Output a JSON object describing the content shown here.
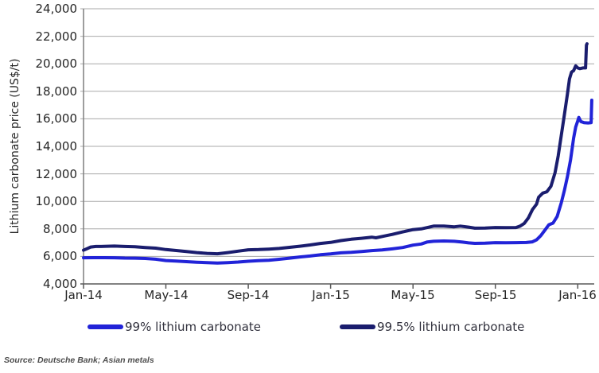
{
  "y_axis": {
    "title": "Lithium carbonate price (US$/t)",
    "tick_labels": [
      "24,000",
      "22,000",
      "20,000",
      "18,000",
      "16,000",
      "14,000",
      "12,000",
      "10,000",
      "8,000",
      "6,000",
      "4,000"
    ]
  },
  "x_axis": {
    "tick_labels": [
      "Jan-14",
      "May-14",
      "Sep-14",
      "Jan-15",
      "May-15",
      "Sep-15",
      "Jan-16"
    ]
  },
  "legend": [
    {
      "label": "99% lithium carbonate",
      "color": "#2123d8"
    },
    {
      "label": "99.5% lithium carbonate",
      "color": "#1a1d6e"
    }
  ],
  "source": "Source: Deutsche Bank; Asian metals",
  "colors": {
    "gridline": "#a8a8a8",
    "y_axis_line": "#7f7f7f",
    "x_axis_line": "#595959",
    "tick_text": "#262626"
  },
  "chart_data": {
    "type": "line",
    "title": "",
    "xlabel": "",
    "ylabel": "Lithium carbonate price (US$/t)",
    "x_unit": "months since Jan-2014 (0 = Jan-14, 24 = Jan-16)",
    "x_tick_positions": [
      0,
      4,
      8,
      12,
      16,
      20,
      24
    ],
    "x_tick_labels": [
      "Jan-14",
      "May-14",
      "Sep-14",
      "Jan-15",
      "May-15",
      "Sep-15",
      "Jan-16"
    ],
    "xlim": [
      0,
      24.8
    ],
    "ylim": [
      4000,
      24000
    ],
    "y_tick_step": 2000,
    "grid": true,
    "legend_position": "bottom",
    "series": [
      {
        "name": "99% lithium carbonate",
        "color": "#2123d8",
        "points": [
          [
            0,
            5900
          ],
          [
            0.5,
            5910
          ],
          [
            1,
            5910
          ],
          [
            1.5,
            5900
          ],
          [
            2,
            5880
          ],
          [
            2.5,
            5870
          ],
          [
            3,
            5850
          ],
          [
            3.5,
            5800
          ],
          [
            4,
            5700
          ],
          [
            4.5,
            5660
          ],
          [
            5,
            5620
          ],
          [
            5.5,
            5580
          ],
          [
            6,
            5550
          ],
          [
            6.5,
            5520
          ],
          [
            7,
            5550
          ],
          [
            7.5,
            5590
          ],
          [
            8,
            5650
          ],
          [
            8.5,
            5690
          ],
          [
            9,
            5720
          ],
          [
            9.5,
            5790
          ],
          [
            10,
            5870
          ],
          [
            10.5,
            5960
          ],
          [
            11,
            6030
          ],
          [
            11.5,
            6120
          ],
          [
            12,
            6180
          ],
          [
            12.5,
            6260
          ],
          [
            13,
            6300
          ],
          [
            13.5,
            6360
          ],
          [
            14,
            6420
          ],
          [
            14.5,
            6470
          ],
          [
            15,
            6550
          ],
          [
            15.5,
            6650
          ],
          [
            16,
            6820
          ],
          [
            16.4,
            6900
          ],
          [
            16.7,
            7050
          ],
          [
            17,
            7100
          ],
          [
            17.5,
            7120
          ],
          [
            18,
            7100
          ],
          [
            18.4,
            7040
          ],
          [
            18.7,
            6980
          ],
          [
            19,
            6950
          ],
          [
            19.5,
            6960
          ],
          [
            20,
            7000
          ],
          [
            20.5,
            6990
          ],
          [
            21,
            7000
          ],
          [
            21.5,
            7010
          ],
          [
            21.8,
            7060
          ],
          [
            22,
            7200
          ],
          [
            22.2,
            7500
          ],
          [
            22.4,
            7900
          ],
          [
            22.6,
            8300
          ],
          [
            22.8,
            8420
          ],
          [
            23,
            8900
          ],
          [
            23.2,
            9900
          ],
          [
            23.35,
            10800
          ],
          [
            23.5,
            11800
          ],
          [
            23.65,
            13000
          ],
          [
            23.8,
            14600
          ],
          [
            23.9,
            15400
          ],
          [
            24,
            15850
          ],
          [
            24.05,
            16100
          ],
          [
            24.15,
            15800
          ],
          [
            24.3,
            15720
          ],
          [
            24.5,
            15700
          ],
          [
            24.65,
            15720
          ],
          [
            24.68,
            17350
          ]
        ]
      },
      {
        "name": "99.5% lithium carbonate",
        "color": "#1a1d6e",
        "points": [
          [
            0,
            6450
          ],
          [
            0.15,
            6550
          ],
          [
            0.35,
            6680
          ],
          [
            0.6,
            6720
          ],
          [
            1,
            6730
          ],
          [
            1.5,
            6750
          ],
          [
            2,
            6720
          ],
          [
            2.5,
            6700
          ],
          [
            3,
            6650
          ],
          [
            3.5,
            6600
          ],
          [
            4,
            6500
          ],
          [
            4.5,
            6430
          ],
          [
            5,
            6350
          ],
          [
            5.5,
            6280
          ],
          [
            6,
            6220
          ],
          [
            6.5,
            6190
          ],
          [
            7,
            6280
          ],
          [
            7.5,
            6380
          ],
          [
            8,
            6480
          ],
          [
            8.5,
            6500
          ],
          [
            9,
            6530
          ],
          [
            9.5,
            6580
          ],
          [
            10,
            6660
          ],
          [
            10.5,
            6740
          ],
          [
            11,
            6830
          ],
          [
            11.5,
            6940
          ],
          [
            12,
            7020
          ],
          [
            12.5,
            7150
          ],
          [
            13,
            7250
          ],
          [
            13.5,
            7320
          ],
          [
            14,
            7400
          ],
          [
            14.2,
            7350
          ],
          [
            14.6,
            7480
          ],
          [
            15,
            7600
          ],
          [
            15.5,
            7780
          ],
          [
            16,
            7950
          ],
          [
            16.4,
            8000
          ],
          [
            16.7,
            8100
          ],
          [
            17,
            8200
          ],
          [
            17.5,
            8210
          ],
          [
            18,
            8150
          ],
          [
            18.3,
            8200
          ],
          [
            18.7,
            8130
          ],
          [
            19,
            8050
          ],
          [
            19.5,
            8060
          ],
          [
            20,
            8100
          ],
          [
            20.5,
            8090
          ],
          [
            21,
            8100
          ],
          [
            21.2,
            8200
          ],
          [
            21.4,
            8400
          ],
          [
            21.6,
            8800
          ],
          [
            21.8,
            9400
          ],
          [
            22,
            9800
          ],
          [
            22.1,
            10300
          ],
          [
            22.3,
            10600
          ],
          [
            22.5,
            10700
          ],
          [
            22.7,
            11100
          ],
          [
            22.9,
            12100
          ],
          [
            23.05,
            13300
          ],
          [
            23.2,
            14800
          ],
          [
            23.35,
            16300
          ],
          [
            23.5,
            17800
          ],
          [
            23.6,
            18900
          ],
          [
            23.7,
            19400
          ],
          [
            23.8,
            19500
          ],
          [
            23.9,
            19850
          ],
          [
            24,
            19700
          ],
          [
            24.1,
            19650
          ],
          [
            24.25,
            19700
          ],
          [
            24.38,
            19700
          ],
          [
            24.42,
            21350
          ],
          [
            24.45,
            21450
          ]
        ]
      }
    ]
  }
}
